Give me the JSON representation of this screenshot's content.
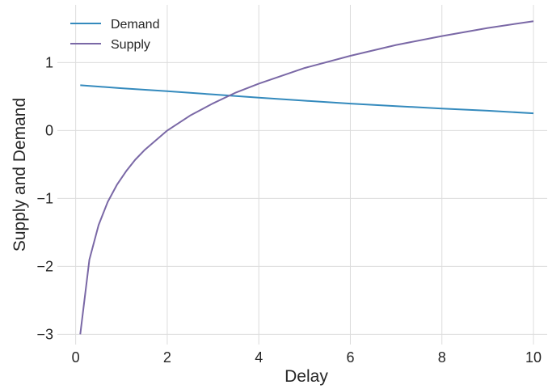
{
  "chart_data": {
    "type": "line",
    "xlabel": "Delay",
    "ylabel": "Supply and Demand",
    "xlim": [
      -0.4,
      10.3
    ],
    "ylim": [
      -3.15,
      1.85
    ],
    "xticks": [
      0,
      2,
      4,
      6,
      8,
      10
    ],
    "yticks": [
      -3,
      -2,
      -1,
      0,
      1
    ],
    "xtick_labels": [
      "0",
      "2",
      "4",
      "6",
      "8",
      "10"
    ],
    "ytick_labels": [
      "−3",
      "−2",
      "−1",
      "0",
      "1"
    ],
    "grid": true,
    "legend_position": "upper-left",
    "series": [
      {
        "name": "Demand",
        "color": "#348abd",
        "x": [
          0.1,
          1,
          2,
          3,
          4,
          5,
          6,
          7,
          8,
          9,
          10
        ],
        "y": [
          0.667,
          0.623,
          0.58,
          0.531,
          0.484,
          0.439,
          0.397,
          0.359,
          0.324,
          0.292,
          0.253
        ]
      },
      {
        "name": "Supply",
        "color": "#7a68a6",
        "x": [
          0.1,
          0.3,
          0.5,
          0.7,
          0.9,
          1.1,
          1.3,
          1.5,
          2,
          2.5,
          3,
          3.5,
          4,
          5,
          6,
          7,
          8,
          9,
          10
        ],
        "y": [
          -3.0,
          -1.9,
          -1.39,
          -1.05,
          -0.8,
          -0.6,
          -0.43,
          -0.29,
          0.0,
          0.22,
          0.4,
          0.56,
          0.69,
          0.92,
          1.1,
          1.26,
          1.39,
          1.51,
          1.61
        ]
      }
    ]
  }
}
